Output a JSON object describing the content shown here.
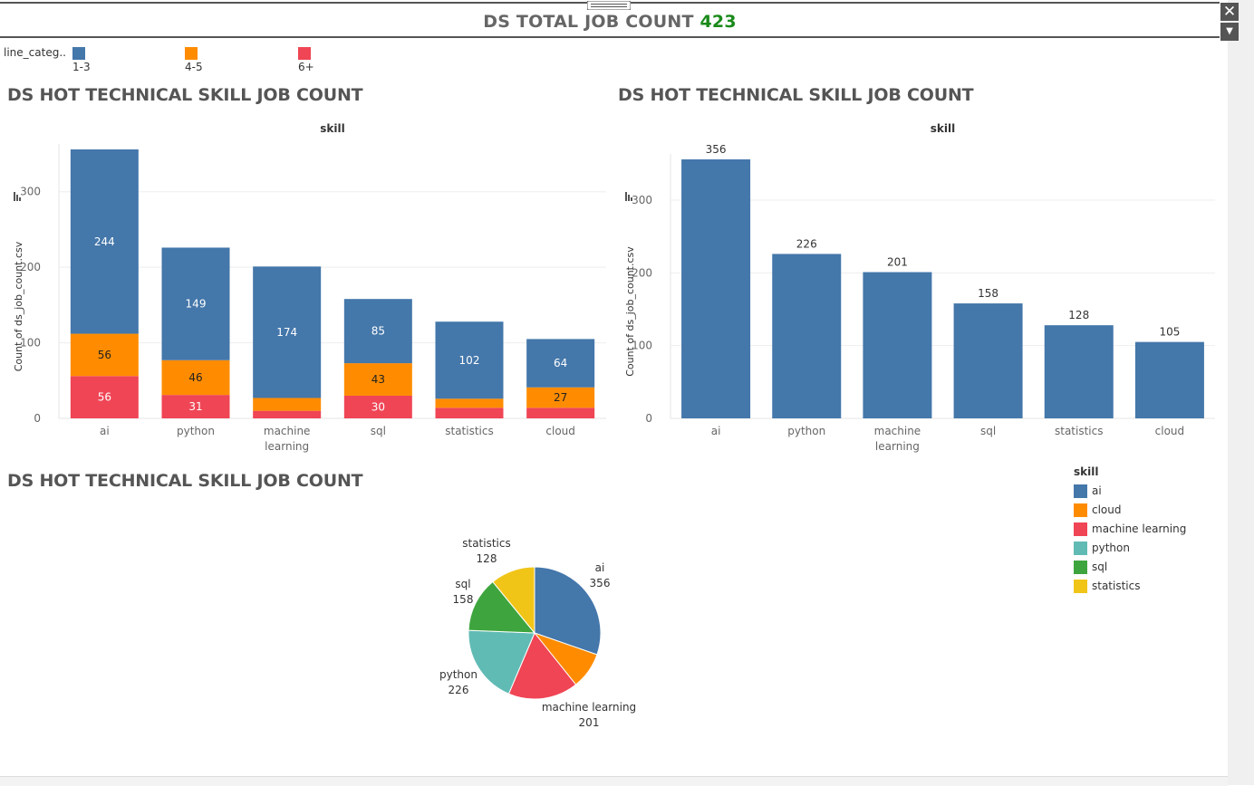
{
  "header": {
    "title_text": "DS TOTAL JOB COUNT",
    "title_value": "423"
  },
  "window_controls": {
    "close_icon": "close-icon",
    "dropdown_icon": "chevron-down-icon"
  },
  "legend_top": {
    "field": "line_categ..",
    "items": [
      {
        "label": "1-3",
        "color": "#4477aa"
      },
      {
        "label": "4-5",
        "color": "#ff8c00"
      },
      {
        "label": "6+",
        "color": "#ef4555"
      }
    ]
  },
  "legend_right": {
    "title": "skill",
    "items": [
      {
        "label": "ai",
        "color": "#4477aa"
      },
      {
        "label": "cloud",
        "color": "#ff8c00"
      },
      {
        "label": "machine learning",
        "color": "#ef4555"
      },
      {
        "label": "python",
        "color": "#61bbb5"
      },
      {
        "label": "sql",
        "color": "#3ea53e"
      },
      {
        "label": "statistics",
        "color": "#f1c518"
      }
    ]
  },
  "chart_data": [
    {
      "type": "bar",
      "stacked": true,
      "title": "DS HOT TECHNICAL SKILL JOB COUNT",
      "column_header": "skill",
      "ylabel": "Count of ds_job_count.csv",
      "ylim": [
        0,
        356
      ],
      "yticks": [
        0,
        100,
        200,
        300
      ],
      "categories": [
        "ai",
        "python",
        "machine learning",
        "sql",
        "statistics",
        "cloud"
      ],
      "category_labels": [
        [
          "ai"
        ],
        [
          "python"
        ],
        [
          "machine",
          "learning"
        ],
        [
          "sql"
        ],
        [
          "statistics"
        ],
        [
          "cloud"
        ]
      ],
      "series": [
        {
          "name": "6+",
          "color": "#ef4555",
          "values": [
            56,
            31,
            10,
            30,
            14,
            14
          ],
          "labels": [
            "56",
            "31",
            "",
            "30",
            "",
            ""
          ]
        },
        {
          "name": "4-5",
          "color": "#ff8c00",
          "values": [
            56,
            46,
            17,
            43,
            12,
            27
          ],
          "labels": [
            "56",
            "46",
            "",
            "43",
            "",
            "27"
          ]
        },
        {
          "name": "1-3",
          "color": "#4477aa",
          "values": [
            244,
            149,
            174,
            85,
            102,
            64
          ],
          "labels": [
            "244",
            "149",
            "174",
            "85",
            "102",
            "64"
          ]
        }
      ],
      "grid": true
    },
    {
      "type": "bar",
      "title": "DS HOT TECHNICAL SKILL JOB COUNT",
      "column_header": "skill",
      "ylabel": "Count of ds_job_count.csv",
      "ylim": [
        0,
        356
      ],
      "yticks": [
        0,
        100,
        200,
        300
      ],
      "categories": [
        "ai",
        "python",
        "machine learning",
        "sql",
        "statistics",
        "cloud"
      ],
      "category_labels": [
        [
          "ai"
        ],
        [
          "python"
        ],
        [
          "machine",
          "learning"
        ],
        [
          "sql"
        ],
        [
          "statistics"
        ],
        [
          "cloud"
        ]
      ],
      "values": [
        356,
        226,
        201,
        158,
        128,
        105
      ],
      "color": "#4477aa",
      "grid": true
    },
    {
      "type": "pie",
      "title": "DS HOT TECHNICAL SKILL JOB COUNT",
      "slices": [
        {
          "label": "ai",
          "value": 356,
          "color": "#4477aa"
        },
        {
          "label": "cloud",
          "value": 105,
          "color": "#ff8c00"
        },
        {
          "label": "machine learning",
          "value": 201,
          "color": "#ef4555"
        },
        {
          "label": "python",
          "value": 226,
          "color": "#61bbb5"
        },
        {
          "label": "sql",
          "value": 158,
          "color": "#3ea53e"
        },
        {
          "label": "statistics",
          "value": 128,
          "color": "#f1c518"
        }
      ]
    }
  ]
}
